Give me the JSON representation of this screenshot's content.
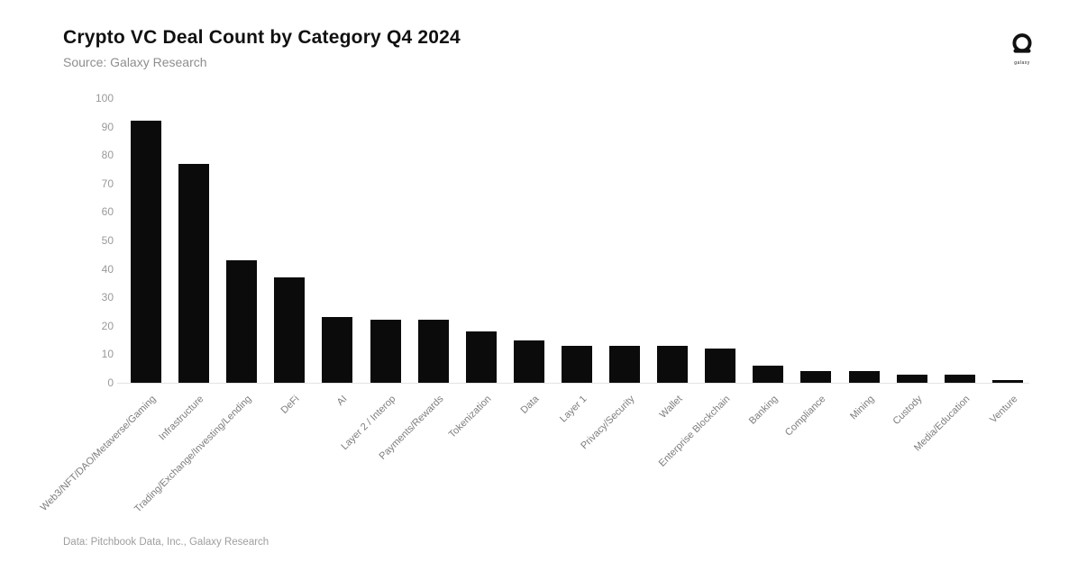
{
  "header": {
    "title": "Crypto VC Deal Count by Category Q4 2024",
    "subtitle": "Source: Galaxy Research"
  },
  "logo": {
    "icon": "galaxy-helmet-icon",
    "label": "galaxy"
  },
  "footer": {
    "credit": "Data: Pitchbook Data, Inc., Galaxy Research"
  },
  "theme": {
    "bar_color": "#0b0b0b",
    "axis_line_color": "#e3e3e3",
    "ytick_color": "#999999",
    "xlabel_color": "#7d7d7d",
    "title_color": "#111111",
    "subtitle_color": "#8e8e8e",
    "footer_color": "#9e9e9e",
    "background": "#ffffff"
  },
  "chart_data": {
    "type": "bar",
    "title": "Crypto VC Deal Count by Category Q4 2024",
    "subtitle": "Source: Galaxy Research",
    "categories": [
      "Web3/NFT/DAO/Metaverse/Gaming",
      "Infrastructure",
      "Trading/Exchange/Investing/Lending",
      "DeFi",
      "AI",
      "Layer 2 / Interop",
      "Payments/Rewards",
      "Tokenization",
      "Data",
      "Layer 1",
      "Privacy/Security",
      "Wallet",
      "Enterprise Blockchain",
      "Banking",
      "Compliance",
      "Mining",
      "Custody",
      "Media/Education",
      "Venture"
    ],
    "values": [
      92,
      77,
      43,
      37,
      23,
      22,
      22,
      18,
      15,
      13,
      13,
      13,
      12,
      6,
      4,
      4,
      3,
      3,
      1
    ],
    "xlabel": "",
    "ylabel": "",
    "ylim": [
      0,
      100
    ],
    "ytick_step": 10,
    "grid": false,
    "legend": "none",
    "xlabel_rotation_deg": 45
  }
}
